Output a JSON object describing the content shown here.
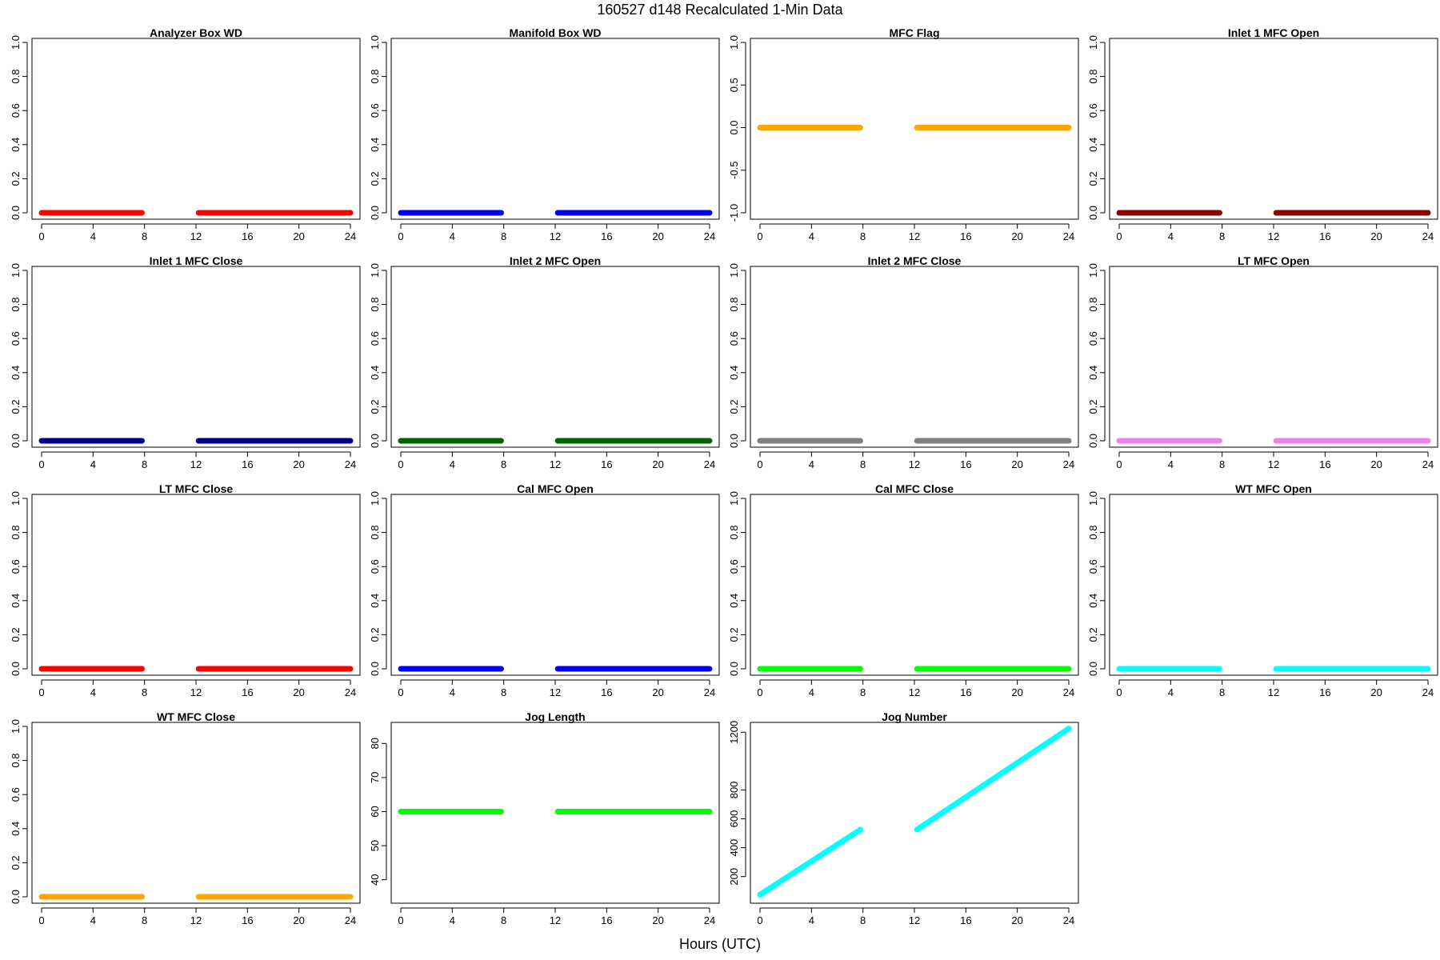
{
  "title": "160527   d148   Recalculated 1-Min Data",
  "xlabel": "Hours (UTC)",
  "chart_data": [
    {
      "type": "scatter",
      "title": "Analyzer Box WD",
      "color": "#ff0000",
      "xlim": [
        0,
        24
      ],
      "ylim": [
        0,
        1
      ],
      "xticks": [
        0,
        4,
        8,
        12,
        16,
        20,
        24
      ],
      "yticks": [
        0,
        0.2,
        0.4,
        0.6,
        0.8,
        1.0
      ],
      "ytick_labels": [
        "0.0",
        "0.2",
        "0.4",
        "0.6",
        "0.8",
        "1.0"
      ],
      "segments": [
        {
          "x": [
            0,
            7.8
          ],
          "y": [
            0,
            0
          ]
        },
        {
          "x": [
            12.2,
            24
          ],
          "y": [
            0,
            0
          ]
        }
      ]
    },
    {
      "type": "scatter",
      "title": "Manifold Box WD",
      "color": "#0000ff",
      "xlim": [
        0,
        24
      ],
      "ylim": [
        0,
        1
      ],
      "xticks": [
        0,
        4,
        8,
        12,
        16,
        20,
        24
      ],
      "yticks": [
        0,
        0.2,
        0.4,
        0.6,
        0.8,
        1.0
      ],
      "ytick_labels": [
        "0.0",
        "0.2",
        "0.4",
        "0.6",
        "0.8",
        "1.0"
      ],
      "segments": [
        {
          "x": [
            0,
            7.8
          ],
          "y": [
            0,
            0
          ]
        },
        {
          "x": [
            12.2,
            24
          ],
          "y": [
            0,
            0
          ]
        }
      ]
    },
    {
      "type": "scatter",
      "title": "MFC Flag",
      "color": "#ffa500",
      "xlim": [
        0,
        24
      ],
      "ylim": [
        -1,
        1
      ],
      "xticks": [
        0,
        4,
        8,
        12,
        16,
        20,
        24
      ],
      "yticks": [
        -1,
        -0.5,
        0,
        0.5,
        1.0
      ],
      "ytick_labels": [
        "-1.0",
        "-0.5",
        "0.0",
        "0.5",
        "1.0"
      ],
      "segments": [
        {
          "x": [
            0,
            7.8
          ],
          "y": [
            0,
            0
          ]
        },
        {
          "x": [
            12.2,
            24
          ],
          "y": [
            0,
            0
          ]
        }
      ]
    },
    {
      "type": "scatter",
      "title": "Inlet 1 MFC Open",
      "color": "#8b0000",
      "xlim": [
        0,
        24
      ],
      "ylim": [
        0,
        1
      ],
      "xticks": [
        0,
        4,
        8,
        12,
        16,
        20,
        24
      ],
      "yticks": [
        0,
        0.2,
        0.4,
        0.6,
        0.8,
        1.0
      ],
      "ytick_labels": [
        "0.0",
        "0.2",
        "0.4",
        "0.6",
        "0.8",
        "1.0"
      ],
      "segments": [
        {
          "x": [
            0,
            7.8
          ],
          "y": [
            0,
            0
          ]
        },
        {
          "x": [
            12.2,
            24
          ],
          "y": [
            0,
            0
          ]
        }
      ]
    },
    {
      "type": "scatter",
      "title": "Inlet 1 MFC Close",
      "color": "#00008b",
      "xlim": [
        0,
        24
      ],
      "ylim": [
        0,
        1
      ],
      "xticks": [
        0,
        4,
        8,
        12,
        16,
        20,
        24
      ],
      "yticks": [
        0,
        0.2,
        0.4,
        0.6,
        0.8,
        1.0
      ],
      "ytick_labels": [
        "0.0",
        "0.2",
        "0.4",
        "0.6",
        "0.8",
        "1.0"
      ],
      "segments": [
        {
          "x": [
            0,
            7.8
          ],
          "y": [
            0,
            0
          ]
        },
        {
          "x": [
            12.2,
            24
          ],
          "y": [
            0,
            0
          ]
        }
      ]
    },
    {
      "type": "scatter",
      "title": "Inlet 2 MFC Open",
      "color": "#006400",
      "xlim": [
        0,
        24
      ],
      "ylim": [
        0,
        1
      ],
      "xticks": [
        0,
        4,
        8,
        12,
        16,
        20,
        24
      ],
      "yticks": [
        0,
        0.2,
        0.4,
        0.6,
        0.8,
        1.0
      ],
      "ytick_labels": [
        "0.0",
        "0.2",
        "0.4",
        "0.6",
        "0.8",
        "1.0"
      ],
      "segments": [
        {
          "x": [
            0,
            7.8
          ],
          "y": [
            0,
            0
          ]
        },
        {
          "x": [
            12.2,
            24
          ],
          "y": [
            0,
            0
          ]
        }
      ]
    },
    {
      "type": "scatter",
      "title": "Inlet 2 MFC Close",
      "color": "#808080",
      "xlim": [
        0,
        24
      ],
      "ylim": [
        0,
        1
      ],
      "xticks": [
        0,
        4,
        8,
        12,
        16,
        20,
        24
      ],
      "yticks": [
        0,
        0.2,
        0.4,
        0.6,
        0.8,
        1.0
      ],
      "ytick_labels": [
        "0.0",
        "0.2",
        "0.4",
        "0.6",
        "0.8",
        "1.0"
      ],
      "segments": [
        {
          "x": [
            0,
            7.8
          ],
          "y": [
            0,
            0
          ]
        },
        {
          "x": [
            12.2,
            24
          ],
          "y": [
            0,
            0
          ]
        }
      ]
    },
    {
      "type": "scatter",
      "title": "LT MFC Open",
      "color": "#ee82ee",
      "xlim": [
        0,
        24
      ],
      "ylim": [
        0,
        1
      ],
      "xticks": [
        0,
        4,
        8,
        12,
        16,
        20,
        24
      ],
      "yticks": [
        0,
        0.2,
        0.4,
        0.6,
        0.8,
        1.0
      ],
      "ytick_labels": [
        "0.0",
        "0.2",
        "0.4",
        "0.6",
        "0.8",
        "1.0"
      ],
      "segments": [
        {
          "x": [
            0,
            7.8
          ],
          "y": [
            0,
            0
          ]
        },
        {
          "x": [
            12.2,
            24
          ],
          "y": [
            0,
            0
          ]
        }
      ]
    },
    {
      "type": "scatter",
      "title": "LT MFC Close",
      "color": "#ff0000",
      "xlim": [
        0,
        24
      ],
      "ylim": [
        0,
        1
      ],
      "xticks": [
        0,
        4,
        8,
        12,
        16,
        20,
        24
      ],
      "yticks": [
        0,
        0.2,
        0.4,
        0.6,
        0.8,
        1.0
      ],
      "ytick_labels": [
        "0.0",
        "0.2",
        "0.4",
        "0.6",
        "0.8",
        "1.0"
      ],
      "segments": [
        {
          "x": [
            0,
            7.8
          ],
          "y": [
            0,
            0
          ]
        },
        {
          "x": [
            12.2,
            24
          ],
          "y": [
            0,
            0
          ]
        }
      ]
    },
    {
      "type": "scatter",
      "title": "Cal MFC Open",
      "color": "#0000ff",
      "xlim": [
        0,
        24
      ],
      "ylim": [
        0,
        1
      ],
      "xticks": [
        0,
        4,
        8,
        12,
        16,
        20,
        24
      ],
      "yticks": [
        0,
        0.2,
        0.4,
        0.6,
        0.8,
        1.0
      ],
      "ytick_labels": [
        "0.0",
        "0.2",
        "0.4",
        "0.6",
        "0.8",
        "1.0"
      ],
      "segments": [
        {
          "x": [
            0,
            7.8
          ],
          "y": [
            0,
            0
          ]
        },
        {
          "x": [
            12.2,
            24
          ],
          "y": [
            0,
            0
          ]
        }
      ]
    },
    {
      "type": "scatter",
      "title": "Cal MFC Close",
      "color": "#00ff00",
      "xlim": [
        0,
        24
      ],
      "ylim": [
        0,
        1
      ],
      "xticks": [
        0,
        4,
        8,
        12,
        16,
        20,
        24
      ],
      "yticks": [
        0,
        0.2,
        0.4,
        0.6,
        0.8,
        1.0
      ],
      "ytick_labels": [
        "0.0",
        "0.2",
        "0.4",
        "0.6",
        "0.8",
        "1.0"
      ],
      "segments": [
        {
          "x": [
            0,
            7.8
          ],
          "y": [
            0,
            0
          ]
        },
        {
          "x": [
            12.2,
            24
          ],
          "y": [
            0,
            0
          ]
        }
      ]
    },
    {
      "type": "scatter",
      "title": "WT MFC Open",
      "color": "#00ffff",
      "xlim": [
        0,
        24
      ],
      "ylim": [
        0,
        1
      ],
      "xticks": [
        0,
        4,
        8,
        12,
        16,
        20,
        24
      ],
      "yticks": [
        0,
        0.2,
        0.4,
        0.6,
        0.8,
        1.0
      ],
      "ytick_labels": [
        "0.0",
        "0.2",
        "0.4",
        "0.6",
        "0.8",
        "1.0"
      ],
      "segments": [
        {
          "x": [
            0,
            7.8
          ],
          "y": [
            0,
            0
          ]
        },
        {
          "x": [
            12.2,
            24
          ],
          "y": [
            0,
            0
          ]
        }
      ]
    },
    {
      "type": "scatter",
      "title": "WT MFC Close",
      "color": "#ffa500",
      "xlim": [
        0,
        24
      ],
      "ylim": [
        0,
        1
      ],
      "xticks": [
        0,
        4,
        8,
        12,
        16,
        20,
        24
      ],
      "yticks": [
        0,
        0.2,
        0.4,
        0.6,
        0.8,
        1.0
      ],
      "ytick_labels": [
        "0.0",
        "0.2",
        "0.4",
        "0.6",
        "0.8",
        "1.0"
      ],
      "segments": [
        {
          "x": [
            0,
            7.8
          ],
          "y": [
            0,
            0
          ]
        },
        {
          "x": [
            12.2,
            24
          ],
          "y": [
            0,
            0
          ]
        }
      ]
    },
    {
      "type": "scatter",
      "title": "Jog Length",
      "color": "#00ff00",
      "xlim": [
        0,
        24
      ],
      "ylim": [
        35,
        85
      ],
      "xticks": [
        0,
        4,
        8,
        12,
        16,
        20,
        24
      ],
      "yticks": [
        40,
        50,
        60,
        70,
        80
      ],
      "ytick_labels": [
        "40",
        "50",
        "60",
        "70",
        "80"
      ],
      "segments": [
        {
          "x": [
            0,
            7.8
          ],
          "y": [
            60,
            60
          ]
        },
        {
          "x": [
            12.2,
            24
          ],
          "y": [
            60,
            60
          ]
        }
      ]
    },
    {
      "type": "scatter",
      "title": "Jog Number",
      "color": "#00ffff",
      "xlim": [
        0,
        24
      ],
      "ylim": [
        60,
        1240
      ],
      "xticks": [
        0,
        4,
        8,
        12,
        16,
        20,
        24
      ],
      "yticks": [
        200,
        400,
        600,
        800,
        1200
      ],
      "ytick_labels": [
        "200",
        "400",
        "600",
        "800",
        "1200"
      ],
      "segments": [
        {
          "x": [
            0,
            7.8
          ],
          "y": [
            75,
            525
          ]
        },
        {
          "x": [
            12.2,
            24
          ],
          "y": [
            525,
            1225
          ]
        }
      ]
    }
  ]
}
